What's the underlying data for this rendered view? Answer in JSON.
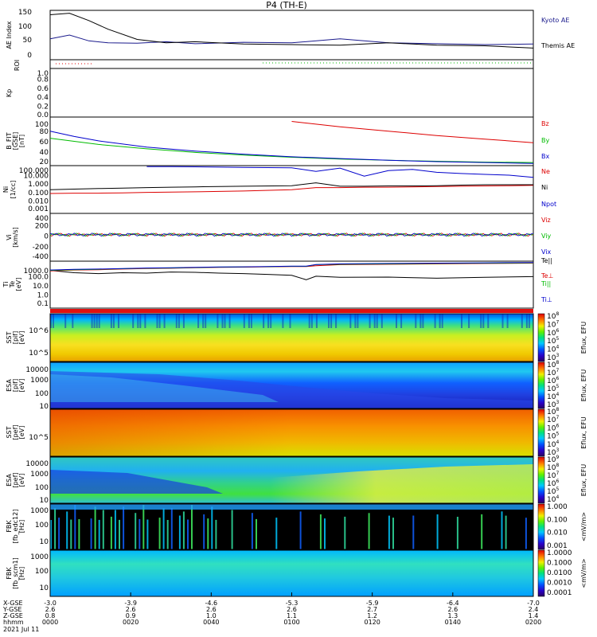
{
  "title": "P4 (TH-E)",
  "colors": {
    "blue": "#0000cc",
    "red": "#dd0000",
    "green": "#00bb00",
    "black": "#000000",
    "kyoto": "#1a1a8c"
  },
  "chart_data": [
    {
      "type": "line",
      "panel": "ae",
      "ylabel": "AE Index",
      "yticks": [
        "150",
        "100",
        "50",
        "0"
      ],
      "ylim": [
        -10,
        160
      ],
      "x": [
        0,
        0.04,
        0.08,
        0.12,
        0.18,
        0.24,
        0.3,
        0.4,
        0.5,
        0.6,
        0.7,
        0.8,
        0.9,
        1.0
      ],
      "series": [
        {
          "name": "Kyoto AE",
          "color": "#1a1a8c",
          "values": [
            62,
            75,
            55,
            48,
            47,
            52,
            45,
            50,
            48,
            62,
            48,
            45,
            42,
            44
          ]
        },
        {
          "name": "Themis AE",
          "color": "#000000",
          "values": [
            145,
            150,
            125,
            95,
            60,
            48,
            52,
            44,
            42,
            40,
            48,
            40,
            38,
            30
          ]
        }
      ],
      "legend": [
        "Kyoto AE",
        "Themis AE"
      ]
    },
    {
      "type": "scatter",
      "panel": "roi",
      "ylabel": "ROI",
      "yticks": [],
      "note": "dotted flags"
    },
    {
      "type": "line",
      "panel": "kp",
      "ylabel": "Kp",
      "yticks": [
        "1.0",
        "0.8",
        "0.6",
        "0.4",
        "0.2",
        "0.0"
      ],
      "ylim": [
        0,
        1
      ]
    },
    {
      "type": "line",
      "panel": "bfit",
      "ylabel": "B_FIT",
      "sublabel": "[GSE]",
      "unit": "[nT]",
      "yticks": [
        "100",
        "80",
        "60",
        "40",
        "20"
      ],
      "ylim": [
        0,
        110
      ],
      "x": [
        0,
        0.05,
        0.1,
        0.2,
        0.3,
        0.4,
        0.5,
        0.6,
        0.7,
        0.8,
        0.9,
        1.0
      ],
      "series": [
        {
          "name": "Bz",
          "color": "#dd0000",
          "values": [
            null,
            null,
            null,
            null,
            null,
            null,
            100,
            88,
            78,
            68,
            60,
            52
          ]
        },
        {
          "name": "By",
          "color": "#00bb00",
          "values": [
            62,
            55,
            48,
            38,
            30,
            24,
            19,
            15,
            12,
            10,
            8,
            7
          ]
        },
        {
          "name": "Bx",
          "color": "#0000cc",
          "values": [
            78,
            66,
            56,
            42,
            33,
            26,
            20,
            16,
            12,
            9,
            7,
            5
          ]
        }
      ]
    },
    {
      "type": "line",
      "panel": "ni",
      "ylabel": "Ni",
      "sublabel": "[1/cc]",
      "yticks": [
        "100.000",
        "10.000",
        "1.000",
        "0.100",
        "0.010",
        "0.001"
      ],
      "ylog": true,
      "ylim": [
        0.001,
        100
      ],
      "x": [
        0,
        0.05,
        0.1,
        0.15,
        0.2,
        0.25,
        0.3,
        0.35,
        0.4,
        0.5,
        0.55,
        0.6,
        0.65,
        0.7,
        0.75,
        0.8,
        0.85,
        0.9,
        0.95,
        1.0
      ],
      "series": [
        {
          "name": "Ne",
          "color": "#dd0000",
          "values": [
            0.12,
            0.13,
            0.13,
            0.14,
            0.16,
            0.17,
            0.18,
            0.2,
            0.22,
            0.3,
            0.5,
            0.5,
            0.55,
            0.55,
            0.6,
            0.65,
            0.7,
            0.75,
            0.8,
            0.85
          ]
        },
        {
          "name": "Ni",
          "color": "#000000",
          "values": [
            0.3,
            0.35,
            0.4,
            0.45,
            0.5,
            0.55,
            0.6,
            0.65,
            0.7,
            0.8,
            1.6,
            0.7,
            0.7,
            0.75,
            0.75,
            0.8,
            0.9,
            1.0,
            1.0,
            1.0
          ]
        },
        {
          "name": "Npot",
          "color": "#0000cc",
          "values": [
            null,
            null,
            null,
            null,
            80,
            80,
            75,
            70,
            65,
            60,
            25,
            55,
            8,
            30,
            40,
            20,
            15,
            12,
            10,
            6
          ]
        }
      ]
    },
    {
      "type": "line",
      "panel": "vi",
      "ylabel": "Vi",
      "unit": "[km/s]",
      "yticks": [
        "400",
        "200",
        "0",
        "-200",
        "-400"
      ],
      "ylim": [
        -500,
        400
      ],
      "series": [
        {
          "name": "Viz",
          "color": "#dd0000"
        },
        {
          "name": "Viy",
          "color": "#00bb00"
        },
        {
          "name": "Vix",
          "color": "#0000cc"
        }
      ]
    },
    {
      "type": "line",
      "panel": "ti",
      "ylabel": "Ti",
      "sublabel": "Te",
      "unit": "[eV]",
      "yticks": [
        "1000.0",
        "100.0",
        "10.0",
        "1.0",
        "0.1"
      ],
      "ylog": true,
      "ylim": [
        0.05,
        10000
      ],
      "x": [
        0,
        0.05,
        0.1,
        0.15,
        0.2,
        0.25,
        0.3,
        0.35,
        0.4,
        0.45,
        0.5,
        0.53,
        0.55,
        0.6,
        0.7,
        0.8,
        0.9,
        1.0
      ],
      "series": [
        {
          "name": "Te||",
          "color": "#000000",
          "values": [
            900,
            500,
            400,
            500,
            450,
            600,
            550,
            450,
            400,
            320,
            250,
            80,
            200,
            150,
            160,
            120,
            150,
            180
          ]
        },
        {
          "name": "Te⊥",
          "color": "#dd0000",
          "values": [
            800,
            1000,
            1100,
            1300,
            1500,
            1600,
            1800,
            2000,
            2100,
            2300,
            2500,
            2500,
            3000,
            4000,
            4500,
            5000,
            5500,
            6000
          ]
        },
        {
          "name": "Ti||",
          "color": "#00bb00",
          "values": [
            900,
            1100,
            1200,
            1400,
            1600,
            1700,
            1900,
            2100,
            2200,
            2400,
            2600,
            2600,
            4000,
            4500,
            5000,
            5500,
            6000,
            6500
          ]
        },
        {
          "name": "Ti⊥",
          "color": "#0000cc",
          "values": [
            1000,
            1200,
            1300,
            1500,
            1700,
            1800,
            2000,
            2200,
            2300,
            2500,
            2700,
            2700,
            4200,
            5000,
            5500,
            6000,
            6500,
            7000
          ]
        }
      ]
    },
    {
      "type": "heatmap",
      "panel": "sst_i",
      "ylabel": "SST",
      "sublabel": "[pif]",
      "unit": "[eV]",
      "yticks": [
        "10^6",
        "10^5"
      ],
      "cbar_label": "Eflux, EFU",
      "cbar_ticks": [
        "10^8",
        "10^7",
        "10^6",
        "10^5",
        "10^4",
        "10^3"
      ]
    },
    {
      "type": "heatmap",
      "panel": "esa_i",
      "ylabel": "ESA",
      "sublabel": "[pif]",
      "unit": "[eV]",
      "yticks": [
        "10000",
        "1000",
        "100",
        "10"
      ],
      "cbar_label": "Eflux, EFU",
      "cbar_ticks": [
        "10^8",
        "10^7",
        "10^6",
        "10^5",
        "10^4",
        "10^3"
      ]
    },
    {
      "type": "heatmap",
      "panel": "sst_e",
      "ylabel": "SST",
      "sublabel": "[pef]",
      "unit": "[eV]",
      "yticks": [
        "10^5"
      ],
      "cbar_label": "Eflux, EFU",
      "cbar_ticks": [
        "10^8",
        "10^7",
        "10^6",
        "10^5",
        "10^4",
        "10^3"
      ]
    },
    {
      "type": "heatmap",
      "panel": "esa_e",
      "ylabel": "ESA",
      "sublabel": "[pef]",
      "unit": "[eV]",
      "yticks": [
        "10000",
        "1000",
        "100",
        "10"
      ],
      "cbar_label": "Eflux, EFU",
      "cbar_ticks": [
        "10^9",
        "10^8",
        "10^7",
        "10^6",
        "10^5",
        "10^4"
      ]
    },
    {
      "type": "heatmap",
      "panel": "fbk_e",
      "ylabel": "FBK",
      "sublabel": "[fb_edc12]",
      "unit": "[Hz]",
      "yticks": [
        "1000",
        "100",
        "10"
      ],
      "cbar_label": "<mV/m>",
      "cbar_ticks": [
        "1.000",
        "0.100",
        "0.010",
        "0.001"
      ]
    },
    {
      "type": "heatmap",
      "panel": "fbk_b",
      "ylabel": "FBK",
      "sublabel": "[fb_scm1]",
      "unit": "[Hz]",
      "yticks": [
        "1000",
        "100",
        "10"
      ],
      "cbar_label": "<mV/m>",
      "cbar_ticks": [
        "1.0000",
        "0.1000",
        "0.0100",
        "0.0010",
        "0.0001"
      ]
    }
  ],
  "footer": {
    "row_labels": [
      "X-GSE",
      "Y-GSE",
      "Z-GSE",
      "hhmm",
      "2021 Jul 11"
    ],
    "columns": [
      {
        "x": "-3.0",
        "y": "2.6",
        "z": "0.8",
        "t": "0000"
      },
      {
        "x": "-3.9",
        "y": "2.6",
        "z": "0.9",
        "t": "0020"
      },
      {
        "x": "-4.6",
        "y": "2.6",
        "z": "1.0",
        "t": "0040"
      },
      {
        "x": "-5.3",
        "y": "2.6",
        "z": "1.1",
        "t": "0100"
      },
      {
        "x": "-5.9",
        "y": "2.7",
        "z": "1.2",
        "t": "0120"
      },
      {
        "x": "-6.4",
        "y": "2.6",
        "z": "1.3",
        "t": "0140"
      },
      {
        "x": "-7.0",
        "y": "2.4",
        "z": "1.4",
        "t": "0200"
      }
    ]
  }
}
